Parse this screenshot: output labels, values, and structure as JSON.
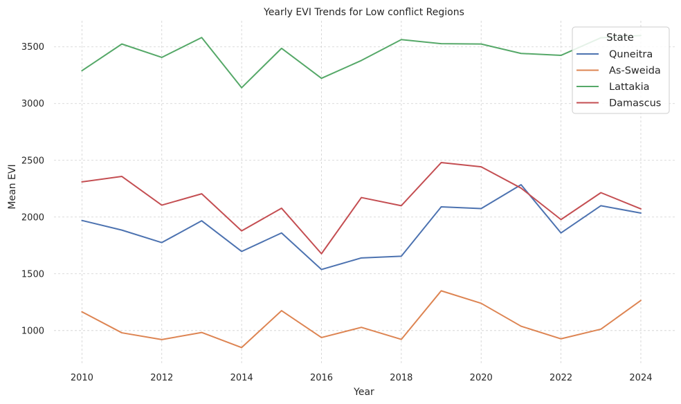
{
  "chart_data": {
    "type": "line",
    "title": "Yearly EVI Trends for Low conflict Regions",
    "xlabel": "Year",
    "ylabel": "Mean EVI",
    "x": [
      2010,
      2011,
      2012,
      2013,
      2014,
      2015,
      2016,
      2017,
      2018,
      2019,
      2020,
      2021,
      2022,
      2023,
      2024
    ],
    "xticks": [
      2010,
      2012,
      2014,
      2016,
      2018,
      2020,
      2022,
      2024
    ],
    "yticks": [
      1000,
      1500,
      2000,
      2500,
      3000,
      3500
    ],
    "xlim": [
      2009.3,
      2024.85
    ],
    "ylim": [
      700,
      3730
    ],
    "grid": true,
    "legend": {
      "title": "State",
      "placement": "top-right"
    },
    "series": [
      {
        "name": "Quneitra",
        "color": "#4c72b0",
        "values": [
          1970,
          1885,
          1775,
          1967,
          1697,
          1860,
          1538,
          1640,
          1655,
          2090,
          2075,
          2285,
          1860,
          2100,
          2035
        ]
      },
      {
        "name": "As-Sweida",
        "color": "#dd8452",
        "values": [
          1165,
          980,
          920,
          983,
          850,
          1175,
          938,
          1028,
          922,
          1350,
          1240,
          1038,
          927,
          1012,
          1265
        ]
      },
      {
        "name": "Lattakia",
        "color": "#55a868",
        "values": [
          3290,
          3525,
          3407,
          3582,
          3140,
          3487,
          3223,
          3380,
          3564,
          3528,
          3525,
          3442,
          3425,
          3580,
          3600
        ]
      },
      {
        "name": "Damascus",
        "color": "#c44e52",
        "values": [
          2310,
          2358,
          2105,
          2205,
          1878,
          2078,
          1677,
          2172,
          2100,
          2480,
          2443,
          2255,
          1978,
          2215,
          2072
        ]
      }
    ]
  }
}
